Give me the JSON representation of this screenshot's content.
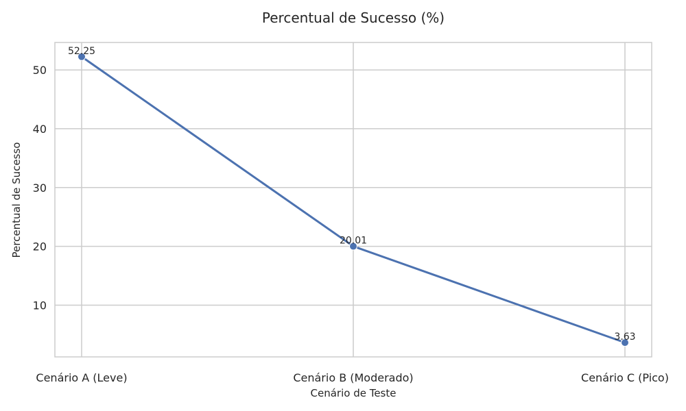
{
  "chart_data": {
    "type": "line",
    "title": "Percentual de Sucesso (%)",
    "xlabel": "Cenário de Teste",
    "ylabel": "Percentual de Sucesso",
    "categories": [
      "Cenário A (Leve)",
      "Cenário B (Moderado)",
      "Cenário C (Pico)"
    ],
    "values": [
      52.25,
      20.01,
      3.63
    ],
    "data_labels": [
      "52.25",
      "20.01",
      "3.63"
    ],
    "yticks": [
      10,
      20,
      30,
      40,
      50
    ],
    "ylim": [
      1.2,
      54.67
    ],
    "grid": true,
    "marker": "circle",
    "colors": {
      "line": "#4c72b0",
      "grid": "#cccccc",
      "text": "#262626"
    }
  }
}
